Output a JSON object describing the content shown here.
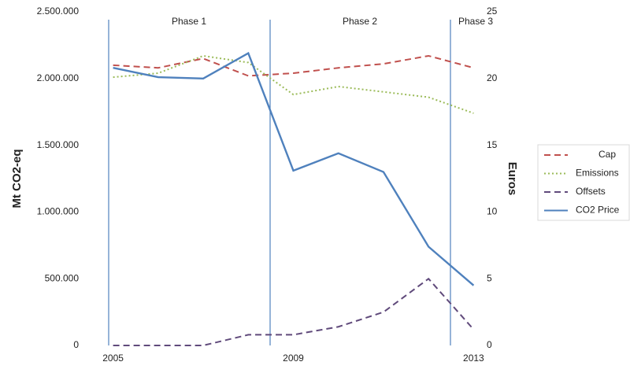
{
  "chart_data": {
    "type": "line",
    "categories": [
      "2005",
      null,
      null,
      null,
      "2009",
      null,
      null,
      null,
      "2013"
    ],
    "y_label": "Mt CO2-eq",
    "y2_label": "Euros",
    "ylim": [
      0,
      2500000
    ],
    "yticks": [
      0,
      {
        "value": 500000,
        "label": "500.000"
      },
      {
        "value": 1000000,
        "label": "1.000.000"
      },
      {
        "value": 1500000,
        "label": "1.500.000"
      },
      {
        "value": 2000000,
        "label": "2.000.000"
      },
      {
        "value": 2500000,
        "label": "2.500.000"
      }
    ],
    "y2lim": [
      0,
      25
    ],
    "y2ticks": [
      0,
      5,
      10,
      15,
      20,
      25
    ],
    "annotations": [
      "Phase 1",
      "Phase 2",
      "Phase 3"
    ],
    "legend": "right",
    "series": [
      {
        "name": "Cap",
        "color": "#c0504d",
        "dash": "dashed",
        "values": [
          2100000,
          2080000,
          2150000,
          2020000,
          2040000,
          2080000,
          2110000,
          2170000,
          2080000
        ]
      },
      {
        "name": "Emissions",
        "color": "#9bbb59",
        "dash": "dotted",
        "values": [
          2010000,
          2040000,
          2170000,
          2120000,
          1880000,
          1940000,
          1900000,
          1860000,
          1740000
        ]
      },
      {
        "name": "Offsets",
        "color": "#604a7b",
        "dash": "dashed",
        "values": [
          0,
          0,
          0,
          80000,
          80000,
          140000,
          250000,
          500000,
          120000
        ]
      },
      {
        "name": "CO2 Price",
        "color": "#4f81bd",
        "dash": "solid",
        "axis": "y2",
        "values": [
          20.8,
          20.1,
          20.0,
          21.9,
          13.1,
          14.4,
          13.0,
          7.4,
          4.5
        ]
      }
    ]
  }
}
